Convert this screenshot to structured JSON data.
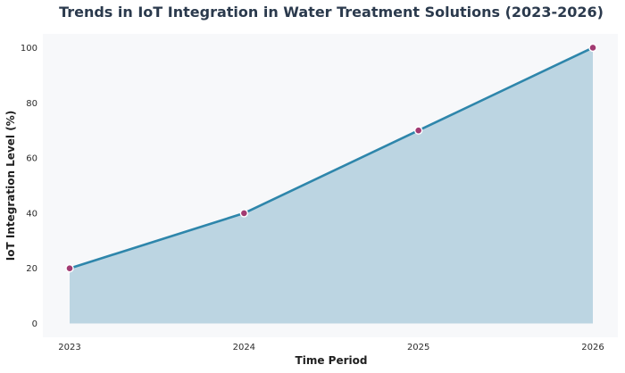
{
  "chart_data": {
    "type": "area",
    "title": "Trends in IoT Integration in Water Treatment Solutions (2023-2026)",
    "xlabel": "Time Period",
    "ylabel": "IoT Integration Level (%)",
    "x": [
      "2023",
      "2024",
      "2025",
      "2026"
    ],
    "series": [
      {
        "values": [
          20,
          40,
          70,
          100
        ]
      }
    ],
    "ylim": [
      -5,
      105
    ],
    "yticks": [
      "0",
      "20",
      "40",
      "60",
      "80",
      "100"
    ],
    "grid": false,
    "legend": "none",
    "colors": {
      "plot_bg": "#f7f8fa",
      "fill": "#bcd5e2",
      "line": "#2e86ab",
      "marker": "#a23b72",
      "marker_edge": "#ffffff",
      "title": "#2b3a4d"
    }
  }
}
